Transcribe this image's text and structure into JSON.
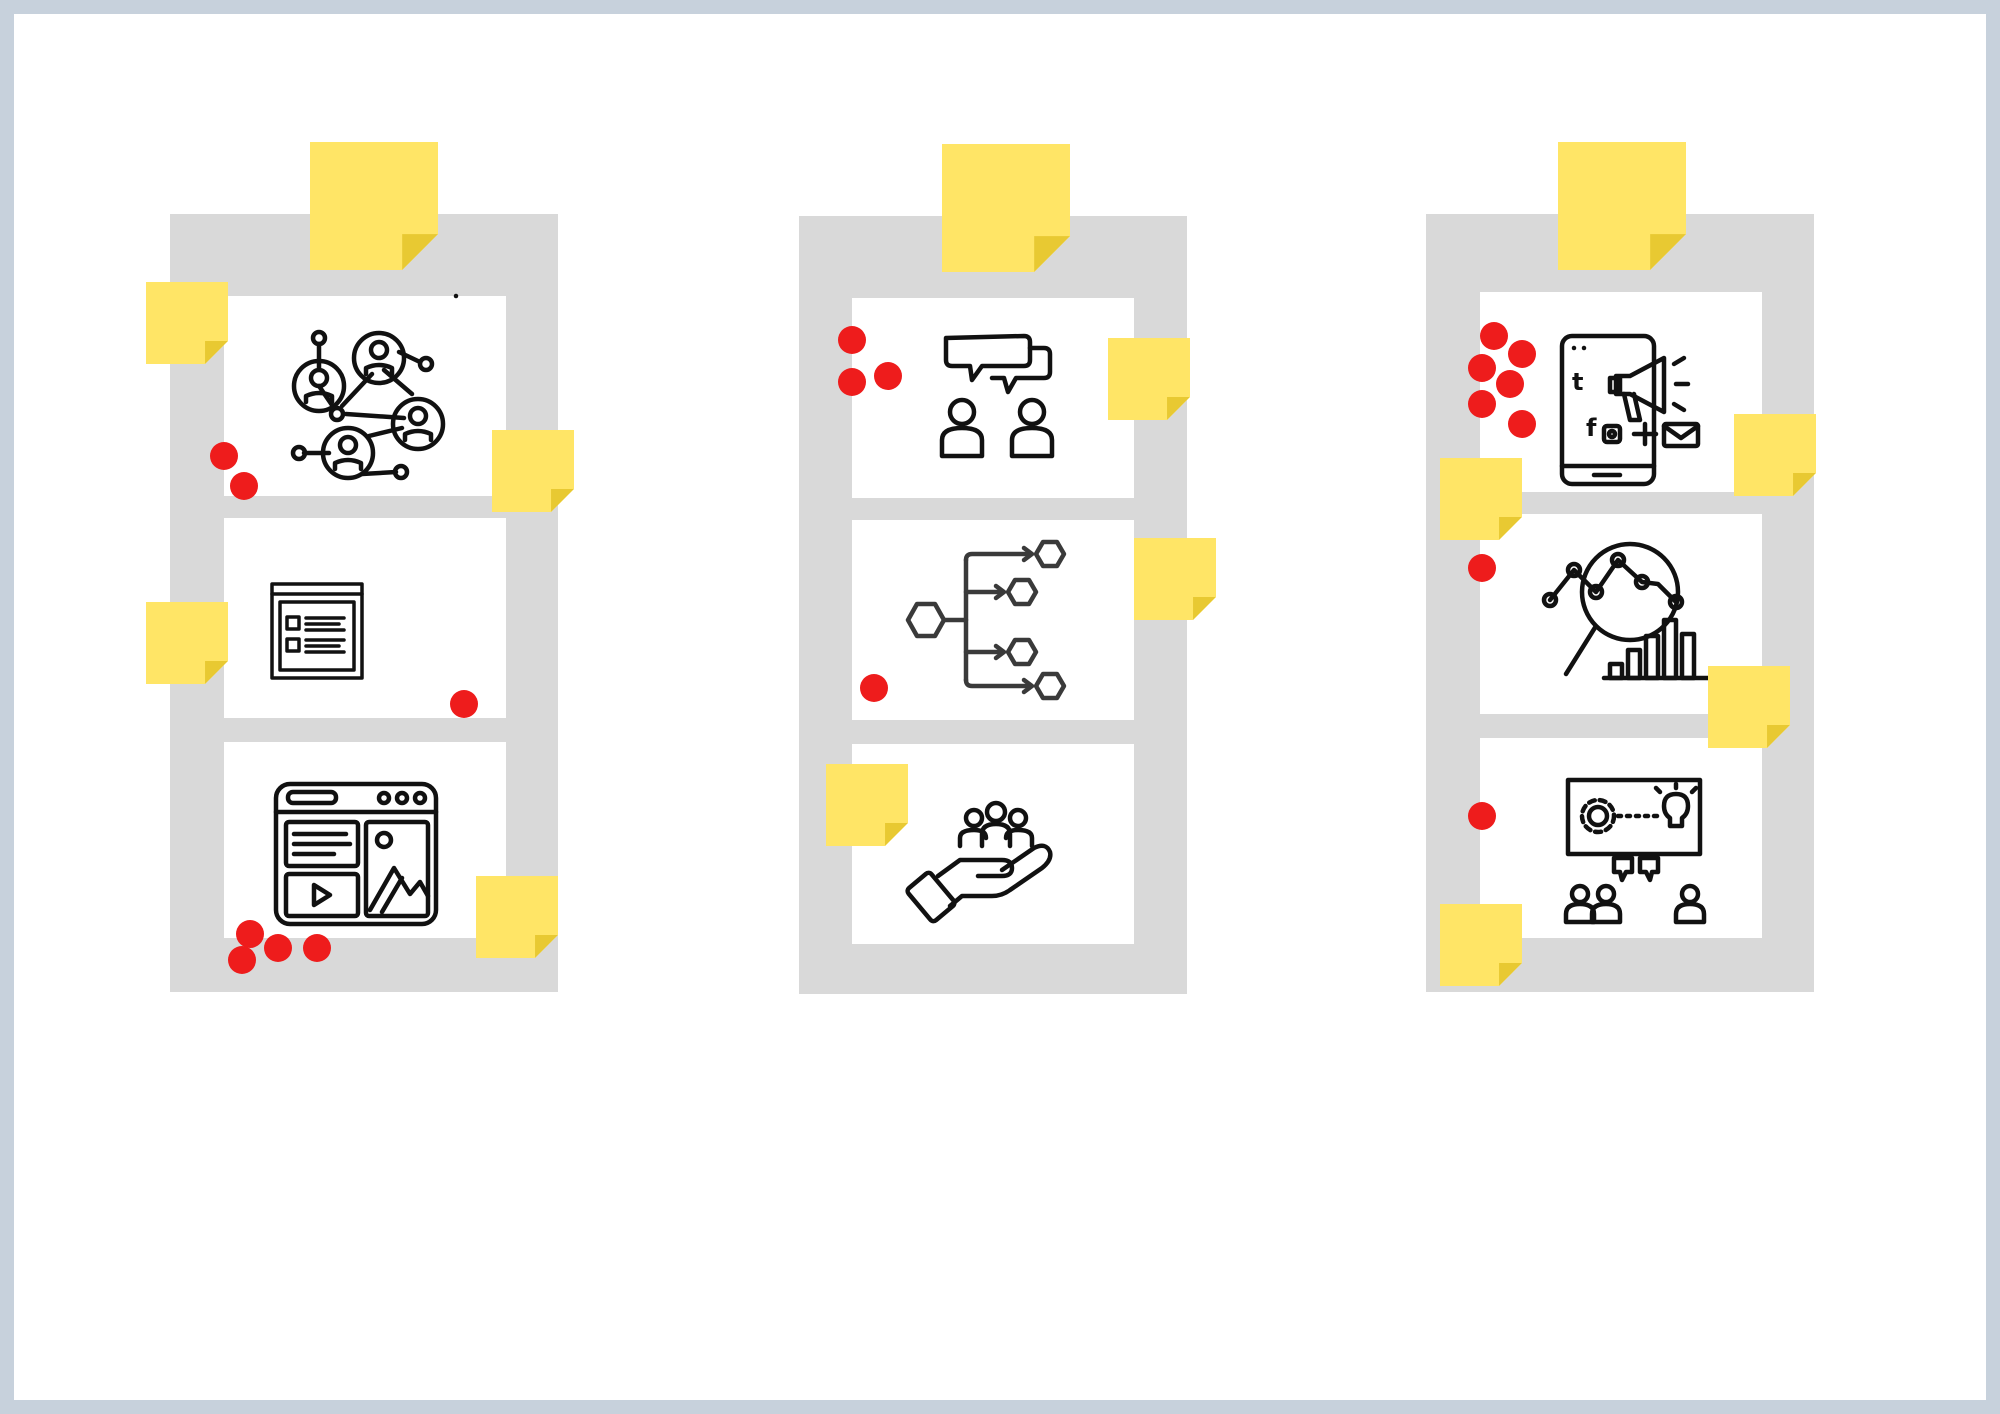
{
  "board": {
    "background": "#ffffff",
    "frame_color": "#d9d9d9",
    "sticky_color": "#ffe566",
    "dot_color": "#ee1c1c"
  },
  "columns": [
    {
      "cards": [
        {
          "icon": "people-network-icon",
          "votes": 2
        },
        {
          "icon": "web-page-layout-icon",
          "votes": 1
        },
        {
          "icon": "browser-media-window-icon",
          "votes": 4
        }
      ]
    },
    {
      "cards": [
        {
          "icon": "people-conversation-icon",
          "votes": 3
        },
        {
          "icon": "hexagon-flow-chart-icon",
          "votes": 1
        },
        {
          "icon": "hand-holding-group-icon",
          "votes": 0
        }
      ]
    },
    {
      "cards": [
        {
          "icon": "mobile-marketing-megaphone-icon",
          "votes": 6
        },
        {
          "icon": "magnifier-analytics-icon",
          "votes": 1
        },
        {
          "icon": "presentation-idea-meeting-icon",
          "votes": 1
        }
      ]
    }
  ],
  "social_icons": {
    "twitter": "t",
    "facebook": "f"
  }
}
